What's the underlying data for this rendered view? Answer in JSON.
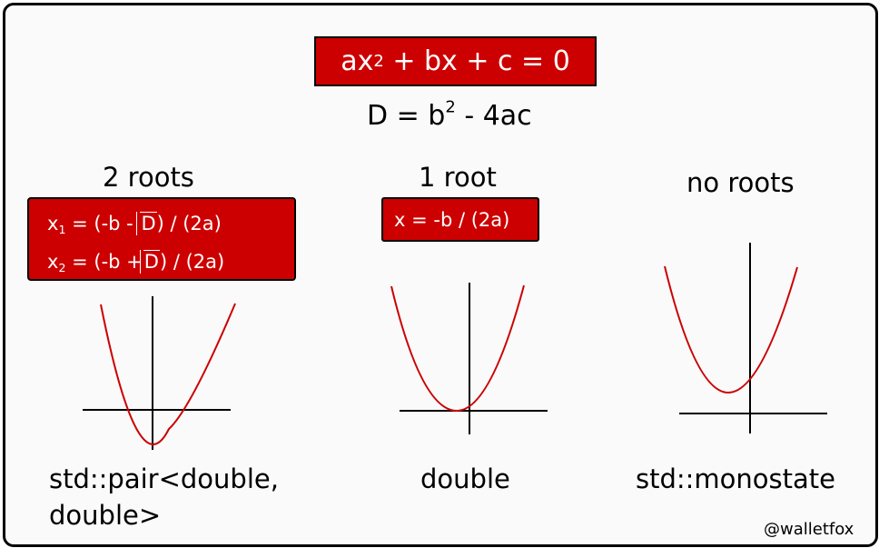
{
  "equation": {
    "left": "ax",
    "exp": "2",
    "rest": " + bx + c = 0"
  },
  "discriminant": {
    "left": "D = b",
    "exp": "2",
    "rest": " - 4ac"
  },
  "cases": [
    {
      "title": "2 roots",
      "formula1": {
        "var": "x",
        "sub": "1",
        "pre": " = (-b - ",
        "root": "D",
        "post": ") / (2a)"
      },
      "formula2": {
        "var": "x",
        "sub": "2",
        "pre": " = (-b +",
        "root": "D",
        "post": ") / (2a)"
      },
      "type_line1": "std::pair<double,",
      "type_line2": "double>"
    },
    {
      "title": "1 root",
      "formula": "x = -b / (2a)",
      "type_line1": "double"
    },
    {
      "title": "no roots",
      "type_line1": "std::monostate"
    }
  ],
  "watermark": "@walletfox",
  "colors": {
    "accent": "#cc0000",
    "axis": "#000000",
    "curve": "#cc0000",
    "background": "#fafafa"
  }
}
